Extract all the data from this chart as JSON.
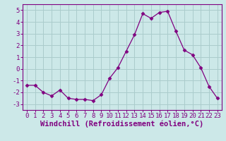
{
  "x": [
    0,
    1,
    2,
    3,
    4,
    5,
    6,
    7,
    8,
    9,
    10,
    11,
    12,
    13,
    14,
    15,
    16,
    17,
    18,
    19,
    20,
    21,
    22,
    23
  ],
  "y": [
    -1.4,
    -1.4,
    -2.0,
    -2.3,
    -1.8,
    -2.5,
    -2.6,
    -2.6,
    -2.7,
    -2.2,
    -0.8,
    0.1,
    1.5,
    2.9,
    4.7,
    4.3,
    4.8,
    4.9,
    3.2,
    1.6,
    1.2,
    0.1,
    -1.5,
    -2.5
  ],
  "line_color": "#800080",
  "marker": "D",
  "marker_size": 2.5,
  "bg_color": "#cce8e8",
  "grid_color": "#aacccc",
  "xlabel": "Windchill (Refroidissement éolien,°C)",
  "xlim": [
    -0.5,
    23.5
  ],
  "ylim": [
    -3.5,
    5.5
  ],
  "yticks": [
    -3,
    -2,
    -1,
    0,
    1,
    2,
    3,
    4,
    5
  ],
  "xticks": [
    0,
    1,
    2,
    3,
    4,
    5,
    6,
    7,
    8,
    9,
    10,
    11,
    12,
    13,
    14,
    15,
    16,
    17,
    18,
    19,
    20,
    21,
    22,
    23
  ],
  "tick_label_fontsize": 6.5,
  "xlabel_fontsize": 7.5,
  "spine_color": "#800080",
  "font_family": "monospace"
}
